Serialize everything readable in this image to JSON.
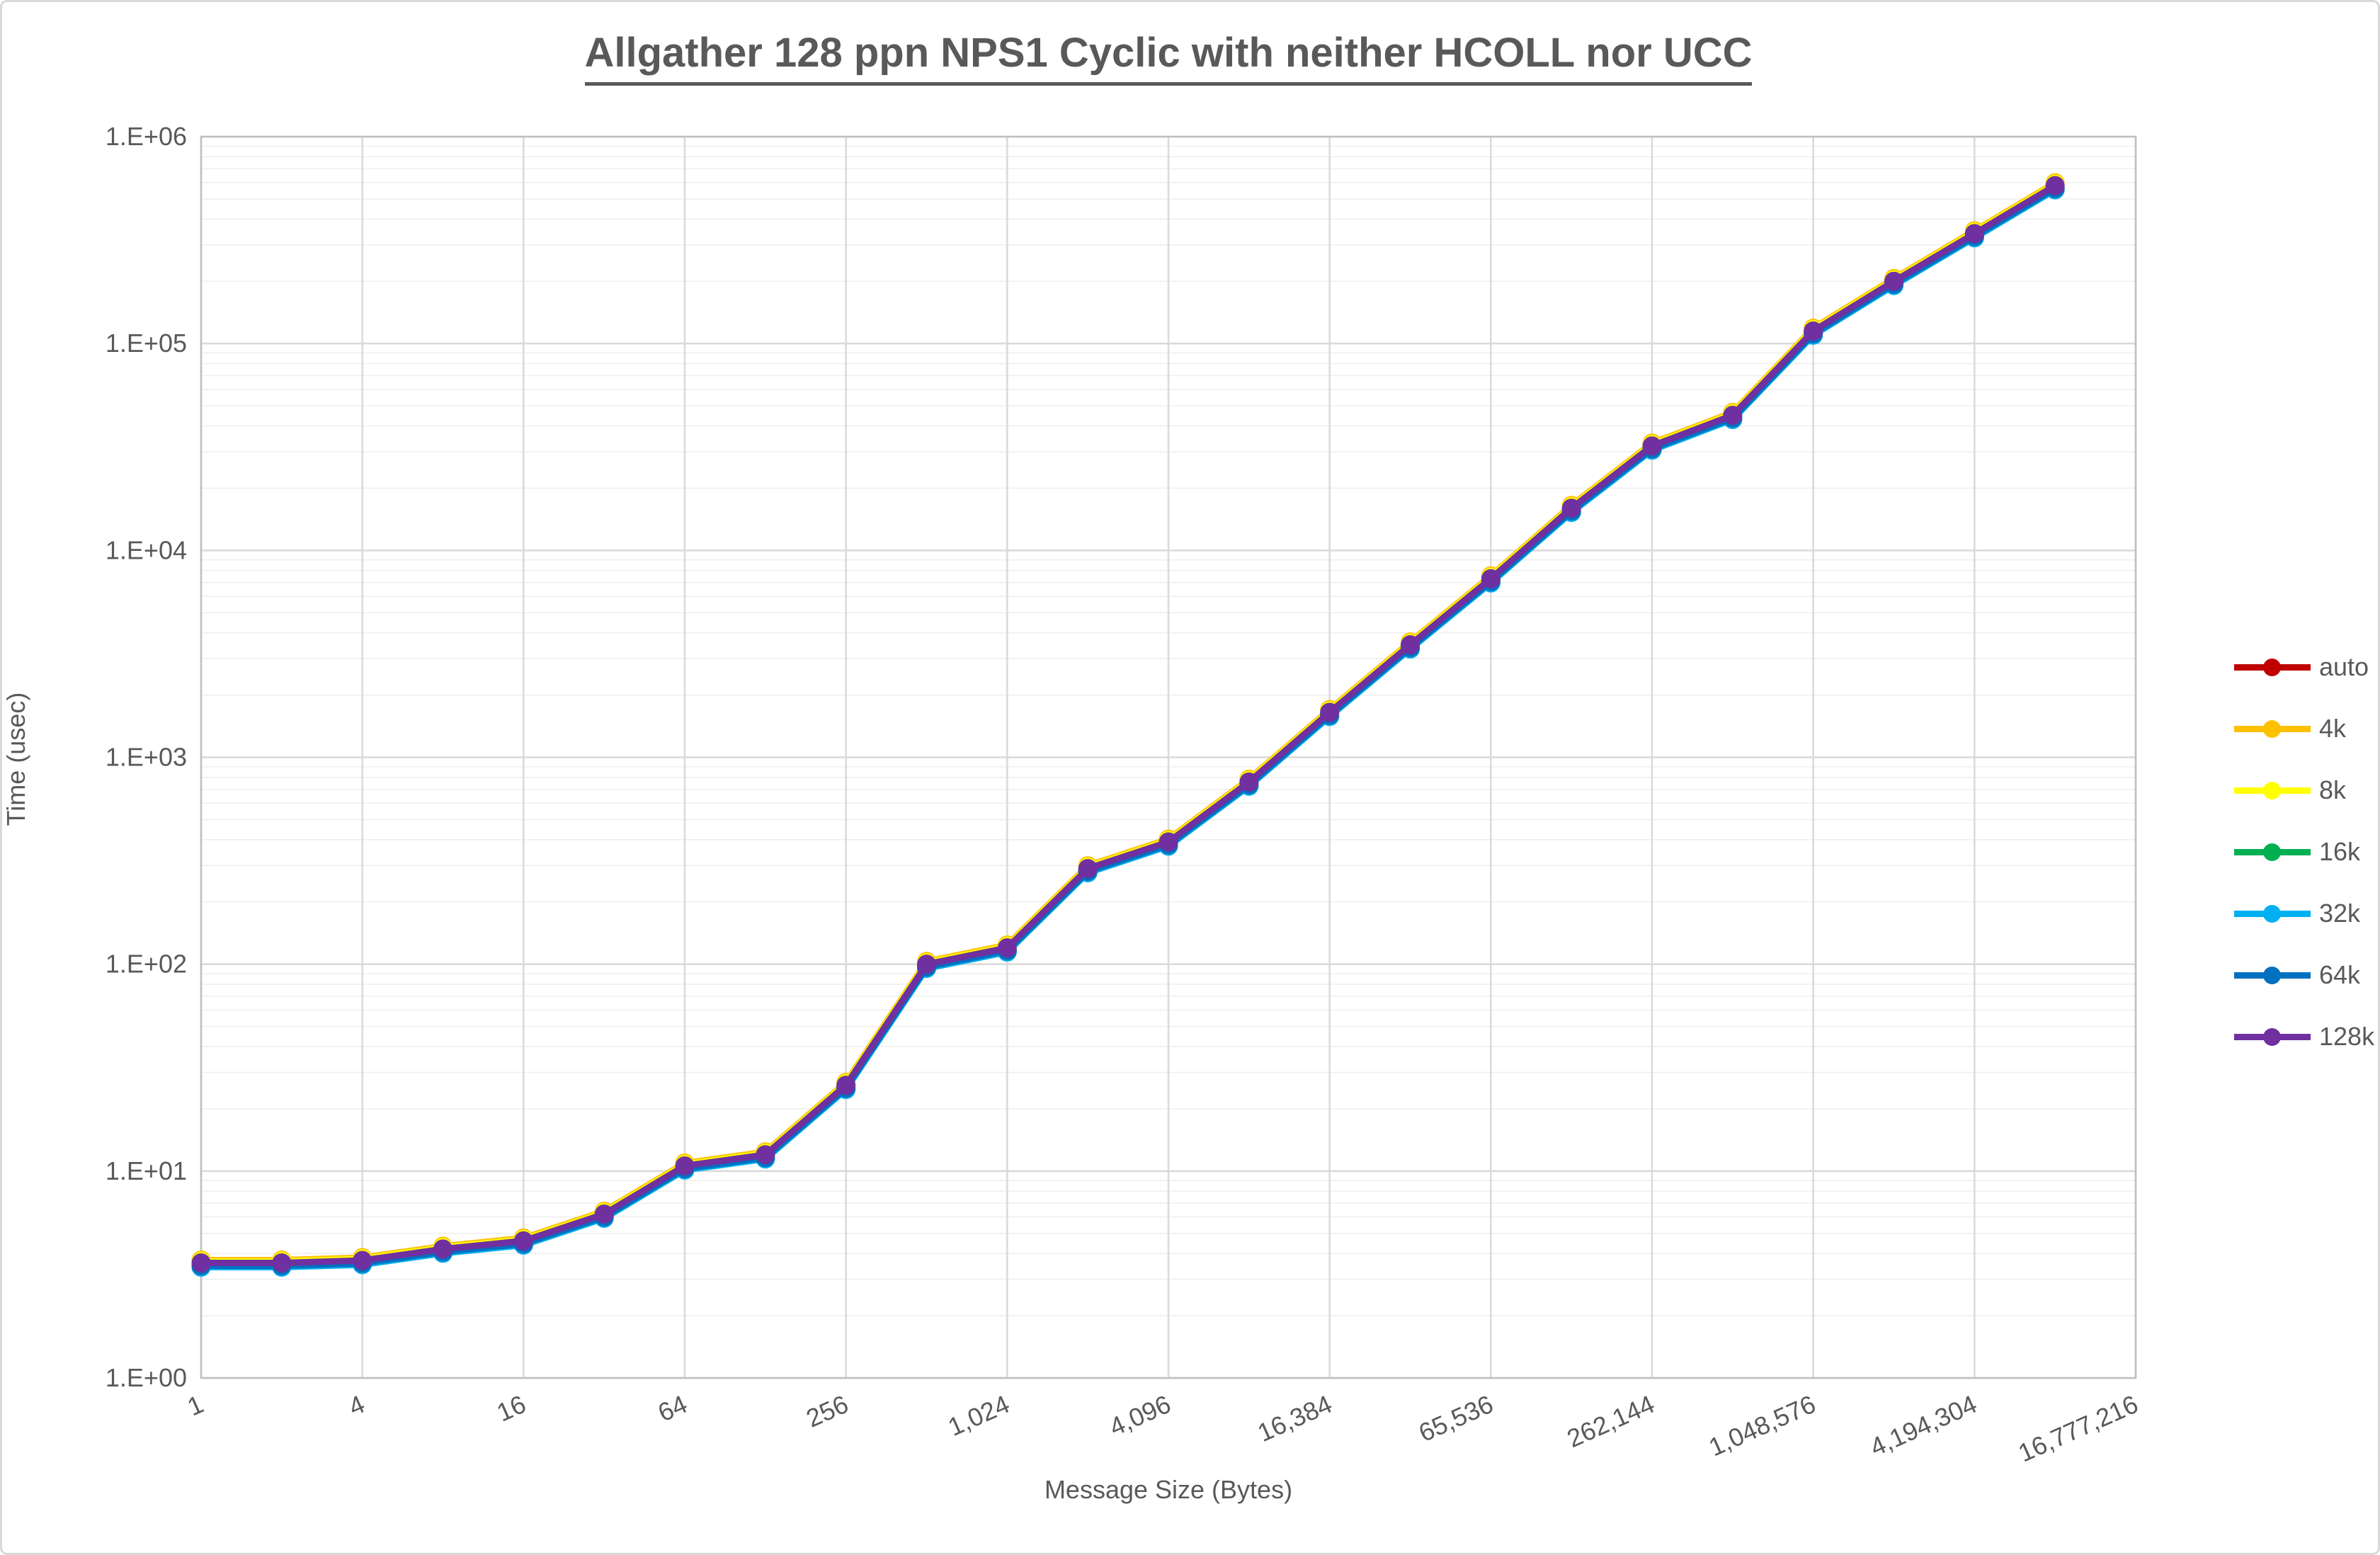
{
  "chart": {
    "title": "Allgather 128 ppn NPS1 Cyclic with neither HCOLL nor UCC",
    "y_axis": {
      "label": "Time (usec)",
      "tick_labels": [
        "1.E+00",
        "1.E+01",
        "1.E+02",
        "1.E+03",
        "1.E+04",
        "1.E+05",
        "1.E+06"
      ]
    },
    "x_axis": {
      "label": "Message Size (Bytes)",
      "tick_labels": [
        "1",
        "4",
        "16",
        "64",
        "256",
        "1,024",
        "4,096",
        "16,384",
        "65,536",
        "262,144",
        "1,048,576",
        "4,194,304",
        "16,777,216"
      ]
    },
    "colors": {
      "text": "#595959",
      "grid_major": "#d9d9d9",
      "grid_minor": "#efefef",
      "plot_border": "#bfbfbf"
    }
  },
  "chart_data": {
    "type": "line",
    "title": "Allgather 128 ppn NPS1 Cyclic with neither HCOLL nor UCC",
    "xlabel": "Message Size (Bytes)",
    "ylabel": "Time (usec)",
    "x_scale": "log2",
    "y_scale": "log10",
    "ylim": [
      1,
      1000000
    ],
    "x_axis_end": 16777216,
    "grid": true,
    "legend_position": "right",
    "x": [
      1,
      2,
      4,
      8,
      16,
      32,
      64,
      128,
      256,
      512,
      1024,
      2048,
      4096,
      8192,
      16384,
      32768,
      65536,
      131072,
      262144,
      524288,
      1048576,
      2097152,
      4194304,
      8388608
    ],
    "note": "All seven series overlap almost exactly; the purple 128k series is drawn on top.",
    "series": [
      {
        "name": "auto",
        "color": "#c00000",
        "values": [
          3.6,
          3.6,
          3.7,
          4.2,
          4.6,
          6.2,
          10.6,
          12,
          26,
          100,
          120,
          290,
          390,
          760,
          1650,
          3500,
          7300,
          16000,
          32000,
          45000,
          115000,
          200000,
          340000,
          580000
        ]
      },
      {
        "name": "4k",
        "color": "#ffc000",
        "values": [
          3.6,
          3.6,
          3.7,
          4.2,
          4.6,
          6.2,
          10.6,
          12,
          26,
          100,
          120,
          290,
          390,
          760,
          1650,
          3500,
          7300,
          16000,
          32000,
          45000,
          115000,
          200000,
          340000,
          580000
        ]
      },
      {
        "name": "8k",
        "color": "#ffff00",
        "values": [
          3.6,
          3.6,
          3.7,
          4.2,
          4.6,
          6.2,
          10.6,
          12,
          26,
          100,
          120,
          290,
          390,
          760,
          1650,
          3500,
          7300,
          16000,
          32000,
          45000,
          115000,
          200000,
          340000,
          580000
        ]
      },
      {
        "name": "16k",
        "color": "#00b050",
        "values": [
          3.6,
          3.6,
          3.7,
          4.2,
          4.6,
          6.2,
          10.6,
          12,
          26,
          100,
          120,
          290,
          390,
          760,
          1650,
          3500,
          7300,
          16000,
          32000,
          45000,
          115000,
          200000,
          340000,
          580000
        ]
      },
      {
        "name": "32k",
        "color": "#00b0f0",
        "values": [
          3.6,
          3.6,
          3.7,
          4.2,
          4.6,
          6.2,
          10.6,
          12,
          26,
          100,
          120,
          290,
          390,
          760,
          1650,
          3500,
          7300,
          16000,
          32000,
          45000,
          115000,
          200000,
          340000,
          580000
        ]
      },
      {
        "name": "64k",
        "color": "#0070c0",
        "values": [
          3.6,
          3.6,
          3.7,
          4.2,
          4.6,
          6.2,
          10.6,
          12,
          26,
          100,
          120,
          290,
          390,
          760,
          1650,
          3500,
          7300,
          16000,
          32000,
          45000,
          115000,
          200000,
          340000,
          580000
        ]
      },
      {
        "name": "128k",
        "color": "#7030a0",
        "values": [
          3.6,
          3.6,
          3.7,
          4.2,
          4.6,
          6.2,
          10.6,
          12,
          26,
          100,
          120,
          290,
          390,
          760,
          1650,
          3500,
          7300,
          16000,
          32000,
          45000,
          115000,
          200000,
          340000,
          580000
        ]
      }
    ]
  }
}
